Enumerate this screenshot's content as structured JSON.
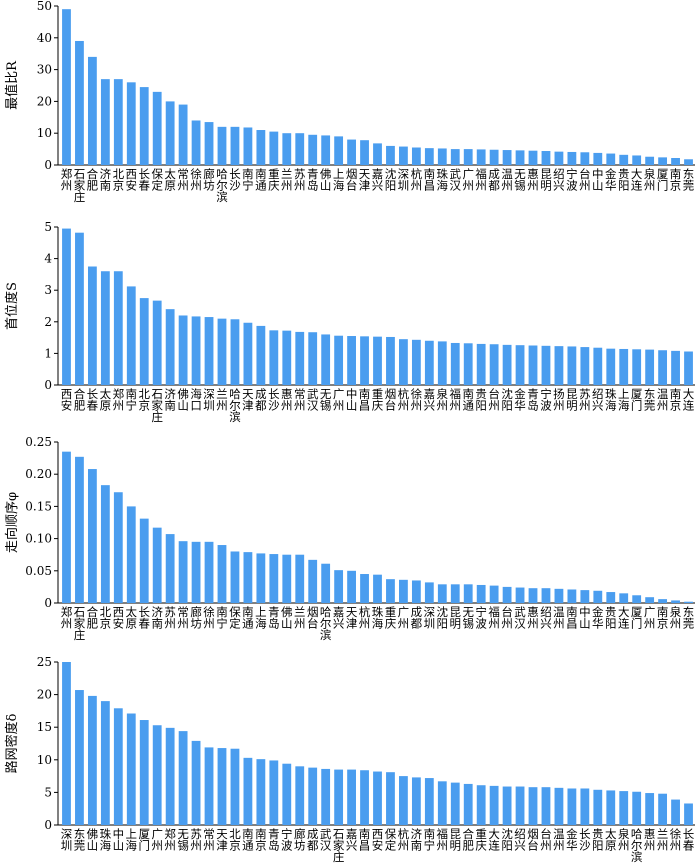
{
  "chart_data": [
    {
      "type": "bar",
      "ylabel": "最值比R",
      "color": "#4a9def",
      "ylim": [
        0,
        50
      ],
      "yticks": [
        0,
        10,
        20,
        30,
        40,
        50
      ],
      "categories": [
        "郑州",
        "石家庄",
        "合肥",
        "济南",
        "北京",
        "西安",
        "长春",
        "保定",
        "太原",
        "常州",
        "徐州",
        "廊坊",
        "哈尔滨",
        "长沙",
        "南宁",
        "南通",
        "重庆",
        "兰州",
        "苏州",
        "青岛",
        "佛山",
        "上海",
        "烟台",
        "天津",
        "嘉兴",
        "沈阳",
        "深圳",
        "杭州",
        "南昌",
        "珠海",
        "武汉",
        "广州",
        "福州",
        "成都",
        "温州",
        "无锡",
        "惠州",
        "昆明",
        "绍兴",
        "宁波",
        "台州",
        "中山",
        "金华",
        "贵阳",
        "大连",
        "泉州",
        "厦门",
        "南京",
        "东莞"
      ],
      "values": [
        49,
        39,
        34,
        27,
        27,
        26,
        24.5,
        23,
        20,
        19,
        14,
        13.5,
        12,
        12,
        11.8,
        11,
        10.5,
        10,
        10,
        9.5,
        9.3,
        9,
        8,
        7.8,
        6.8,
        6,
        5.8,
        5.5,
        5.3,
        5.2,
        5,
        5,
        4.9,
        4.8,
        4.7,
        4.6,
        4.5,
        4.4,
        4.2,
        4.1,
        4,
        3.8,
        3.6,
        3.2,
        3,
        2.6,
        2.4,
        2.2,
        1.8
      ]
    },
    {
      "type": "bar",
      "ylabel": "首位度S",
      "color": "#4a9def",
      "ylim": [
        0,
        5
      ],
      "yticks": [
        0,
        1,
        2,
        3,
        4,
        5
      ],
      "categories": [
        "西安",
        "合肥",
        "长春",
        "太原",
        "郑州",
        "南宁",
        "北京",
        "石家庄",
        "济南",
        "佛山",
        "海口",
        "深圳",
        "兰州",
        "哈尔滨",
        "天津",
        "成都",
        "长沙",
        "惠州",
        "常州",
        "武汉",
        "无锡",
        "广州",
        "中山",
        "南昌",
        "重庆",
        "烟台",
        "杭州",
        "徐州",
        "嘉兴",
        "泉州",
        "福州",
        "南通",
        "贵阳",
        "台州",
        "沈阳",
        "金华",
        "青岛",
        "宁波",
        "扬州",
        "昆明",
        "苏州",
        "绍兴",
        "珠海",
        "上海",
        "厦门",
        "东莞",
        "温州",
        "南京",
        "大连"
      ],
      "values": [
        4.95,
        4.82,
        3.75,
        3.6,
        3.6,
        3.12,
        2.75,
        2.67,
        2.4,
        2.2,
        2.17,
        2.15,
        2.1,
        2.08,
        1.97,
        1.87,
        1.73,
        1.72,
        1.68,
        1.67,
        1.6,
        1.56,
        1.55,
        1.54,
        1.53,
        1.52,
        1.45,
        1.43,
        1.4,
        1.38,
        1.33,
        1.32,
        1.3,
        1.29,
        1.27,
        1.26,
        1.25,
        1.24,
        1.23,
        1.22,
        1.2,
        1.18,
        1.15,
        1.14,
        1.13,
        1.12,
        1.1,
        1.08,
        1.06
      ]
    },
    {
      "type": "bar",
      "ylabel": "走向顺序φ",
      "color": "#4a9def",
      "ylim": [
        0,
        0.25
      ],
      "yticks": [
        0,
        0.05,
        {
          "value": 0.1,
          "label": "0.10"
        },
        0.15,
        {
          "value": 0.2,
          "label": "0.20"
        },
        0.25
      ],
      "categories": [
        "郑州",
        "石家庄",
        "合肥",
        "北京",
        "西安",
        "太原",
        "长春",
        "济南",
        "苏州",
        "常州",
        "廊坊",
        "徐州",
        "南宁",
        "保定",
        "南通",
        "上海",
        "青岛",
        "佛山",
        "兰州",
        "烟台",
        "哈尔滨",
        "嘉兴",
        "天津",
        "杭州",
        "珠海",
        "重庆",
        "广州",
        "成都",
        "深圳",
        "沈阳",
        "昆明",
        "无锡",
        "宁波",
        "福州",
        "台州",
        "武汉",
        "惠州",
        "绍兴",
        "温州",
        "南昌",
        "中山",
        "金华",
        "贵阳",
        "大连",
        "厦门",
        "广州",
        "南京",
        "泉州",
        "东莞"
      ],
      "values": [
        0.235,
        0.227,
        0.208,
        0.183,
        0.172,
        0.15,
        0.131,
        0.117,
        0.107,
        0.096,
        0.095,
        0.095,
        0.09,
        0.08,
        0.079,
        0.077,
        0.076,
        0.075,
        0.075,
        0.067,
        0.061,
        0.051,
        0.05,
        0.045,
        0.044,
        0.037,
        0.036,
        0.035,
        0.032,
        0.029,
        0.029,
        0.029,
        0.028,
        0.027,
        0.025,
        0.024,
        0.023,
        0.023,
        0.022,
        0.021,
        0.02,
        0.019,
        0.017,
        0.015,
        0.012,
        0.009,
        0.006,
        0.004,
        0.002
      ]
    },
    {
      "type": "bar",
      "ylabel": "路网密度δ",
      "color": "#4a9def",
      "ylim": [
        0,
        25
      ],
      "yticks": [
        0,
        5,
        10,
        15,
        20,
        25
      ],
      "categories": [
        "深圳",
        "东莞",
        "佛山",
        "珠海",
        "中山",
        "上海",
        "厦门",
        "广州",
        "郑州",
        "无锡",
        "苏州",
        "常州",
        "天津",
        "北京",
        "南通",
        "南京",
        "青岛",
        "宁波",
        "廊坊",
        "成都",
        "武汉",
        "石家庄",
        "嘉兴",
        "南昌",
        "西安",
        "保定",
        "杭州",
        "济南",
        "南宁",
        "福州",
        "昆明",
        "合肥",
        "重庆",
        "大连",
        "沈阳",
        "绍兴",
        "烟台",
        "台州",
        "温州",
        "金华",
        "长沙",
        "贵阳",
        "太原",
        "泉州",
        "哈尔滨",
        "惠州",
        "兰州",
        "徐州",
        "长春"
      ],
      "values": [
        25,
        20.7,
        19.8,
        19,
        17.9,
        17.1,
        16.1,
        15.3,
        14.9,
        14.4,
        12.9,
        11.9,
        11.8,
        11.7,
        10.3,
        10.1,
        9.9,
        9.4,
        9,
        8.8,
        8.6,
        8.5,
        8.5,
        8.4,
        8.2,
        8.1,
        7.5,
        7.3,
        7.2,
        6.7,
        6.5,
        6.3,
        6.1,
        6,
        5.9,
        5.9,
        5.8,
        5.8,
        5.7,
        5.6,
        5.6,
        5.4,
        5.3,
        5.2,
        5.1,
        4.9,
        4.8,
        3.9,
        3.3
      ]
    }
  ]
}
